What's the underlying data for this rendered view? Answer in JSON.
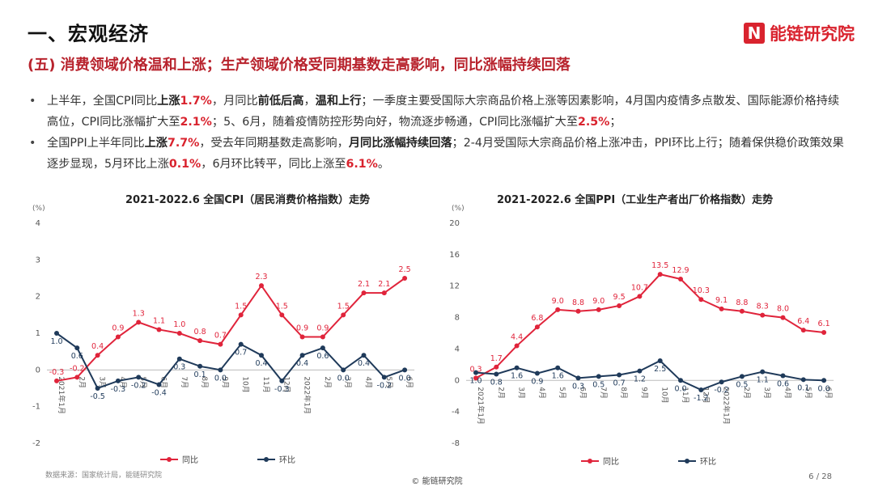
{
  "header": {
    "title": "一、宏观经济",
    "subtitle": "(五) 消费领域价格温和上涨；生产领域价格受同期基数走高影响，同比涨幅持续回落",
    "logo_text": "能链研究院"
  },
  "bullets": [
    {
      "segments": [
        {
          "t": "上半年，全国CPI同比",
          "s": "n"
        },
        {
          "t": "上涨",
          "s": "b"
        },
        {
          "t": "1.7%",
          "s": "r"
        },
        {
          "t": "，月同比",
          "s": "n"
        },
        {
          "t": "前低后高",
          "s": "b"
        },
        {
          "t": "，",
          "s": "n"
        },
        {
          "t": "温和上行",
          "s": "b"
        },
        {
          "t": "；一季度主要受国际大宗商品价格上涨等因素影响，4月国内疫情多点散发、国际能源价格持续高位，CPI同比涨幅扩大至",
          "s": "n"
        },
        {
          "t": "2.1%",
          "s": "r"
        },
        {
          "t": "；5、6月，随着疫情防控形势向好，物流逐步畅通，CPI同比涨幅扩大至",
          "s": "n"
        },
        {
          "t": "2.5%",
          "s": "r"
        },
        {
          "t": "；",
          "s": "n"
        }
      ]
    },
    {
      "segments": [
        {
          "t": "全国PPI上半年同比",
          "s": "n"
        },
        {
          "t": "上涨",
          "s": "b"
        },
        {
          "t": "7.7%",
          "s": "r"
        },
        {
          "t": "，受去年同期基数走高影响，",
          "s": "n"
        },
        {
          "t": "月同比涨幅持续回落",
          "s": "b"
        },
        {
          "t": "；2-4月受国际大宗商品价格上涨冲击，PPI环比上行；随着保供稳价政策效果逐步显现，5月环比上涨",
          "s": "n"
        },
        {
          "t": "0.1%",
          "s": "r"
        },
        {
          "t": "，6月环比转平，同比上涨至",
          "s": "n"
        },
        {
          "t": "6.1%",
          "s": "r"
        },
        {
          "t": "。",
          "s": "n"
        }
      ]
    }
  ],
  "chart_data": [
    {
      "type": "line",
      "title": "2021-2022.6 全国CPI（居民消费价格指数）走势",
      "ylabel": "(%)",
      "ylim": [
        -2,
        4
      ],
      "yticks": [
        -2,
        -1,
        0,
        1,
        2,
        3,
        4
      ],
      "categories": [
        "2021年1月",
        "2月",
        "3月",
        "4月",
        "5月",
        "6月",
        "7月",
        "8月",
        "9月",
        "10月",
        "11月",
        "12月",
        "2022年1月",
        "2月",
        "3月",
        "4月",
        "5月",
        "6月"
      ],
      "series": [
        {
          "name": "同比",
          "color": "#e0243b",
          "values": [
            -0.3,
            -0.2,
            0.4,
            0.9,
            1.3,
            1.1,
            1.0,
            0.8,
            0.7,
            1.5,
            2.3,
            1.5,
            0.9,
            0.9,
            1.5,
            2.1,
            2.1,
            2.5
          ]
        },
        {
          "name": "环比",
          "color": "#1f3a5a",
          "values": [
            1.0,
            0.6,
            -0.5,
            -0.3,
            -0.2,
            -0.4,
            0.3,
            0.1,
            0.0,
            0.7,
            0.4,
            -0.3,
            0.4,
            0.6,
            0.0,
            0.4,
            -0.2,
            0.0
          ]
        }
      ],
      "legend": "bottom"
    },
    {
      "type": "line",
      "title": "2021-2022.6 全国PPI（工业生产者出厂价格指数）走势",
      "ylabel": "(%)",
      "ylim": [
        -8,
        20
      ],
      "yticks": [
        -8,
        -4,
        0,
        4,
        8,
        12,
        16,
        20
      ],
      "categories": [
        "2021年1月",
        "2月",
        "3月",
        "4月",
        "5月",
        "6月",
        "7月",
        "8月",
        "9月",
        "10月",
        "11月",
        "12月",
        "2022年1月",
        "2月",
        "3月",
        "4月",
        "5月",
        "6月"
      ],
      "series": [
        {
          "name": "同比",
          "color": "#e0243b",
          "values": [
            0.3,
            1.7,
            4.4,
            6.8,
            9.0,
            8.8,
            9.0,
            9.5,
            10.7,
            13.5,
            12.9,
            10.3,
            9.1,
            8.8,
            8.3,
            8.0,
            6.4,
            6.1
          ]
        },
        {
          "name": "环比",
          "color": "#1f3a5a",
          "values": [
            1.0,
            0.8,
            1.6,
            0.9,
            1.6,
            0.3,
            0.5,
            0.7,
            1.2,
            2.5,
            0.0,
            -1.2,
            -0.2,
            0.5,
            1.1,
            0.6,
            0.1,
            0.0
          ]
        }
      ],
      "legend": "bottom"
    }
  ],
  "footer": {
    "source": "数据来源：国家统计局，能链研究院",
    "copyright": "© 能链研究院",
    "page": "6 / 28"
  }
}
